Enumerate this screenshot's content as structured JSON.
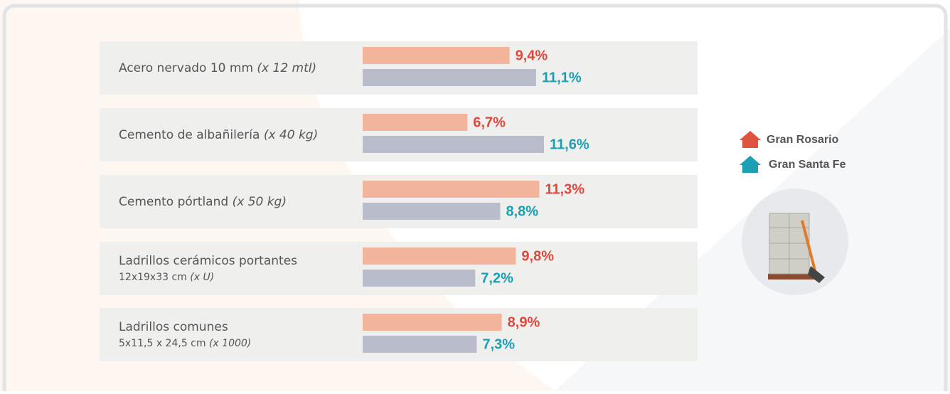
{
  "chart_data": {
    "type": "bar",
    "orientation": "horizontal",
    "categories": [
      {
        "name": "Acero nervado 10 mm",
        "unit": "(x 12 mtl)"
      },
      {
        "name": "Cemento de albañilería",
        "unit": "(x 40 kg)"
      },
      {
        "name": "Cemento pórtland",
        "unit": "(x 50 kg)"
      },
      {
        "name": "Ladrillos cerámicos portantes",
        "size": "12x19x33 cm",
        "unit": "(x U)"
      },
      {
        "name": "Ladrillos comunes",
        "size": "5x11,5 x 24,5 cm",
        "unit": "(x 1000)"
      }
    ],
    "series": [
      {
        "name": "Gran Rosario",
        "color": "#f2b49b",
        "label_color": "#e0473c",
        "icon_color": "#e0533f",
        "values": [
          9.4,
          6.7,
          11.3,
          9.8,
          8.9
        ],
        "value_labels": [
          "9,4%",
          "6,7%",
          "11,3%",
          "9,8%",
          "8,9%"
        ]
      },
      {
        "name": "Gran Santa Fe",
        "color": "#b8bccb",
        "label_color": "#1a9fb3",
        "icon_color": "#1a9fb3",
        "values": [
          11.1,
          11.6,
          8.8,
          7.2,
          7.3
        ],
        "value_labels": [
          "11,1%",
          "11,6%",
          "8,8%",
          "7,2%",
          "7,3%"
        ]
      }
    ]
  }
}
